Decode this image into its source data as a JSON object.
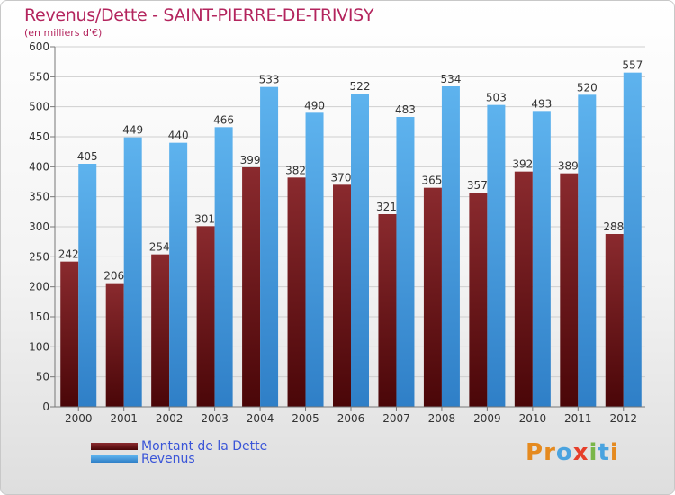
{
  "chart_data": {
    "type": "bar",
    "title": "Revenus/Dette - SAINT-PIERRE-DE-TRIVISY",
    "subtitle": "(en milliers d'€)",
    "categories": [
      "2000",
      "2001",
      "2002",
      "2003",
      "2004",
      "2005",
      "2006",
      "2007",
      "2008",
      "2009",
      "2010",
      "2011",
      "2012"
    ],
    "series": [
      {
        "name": "Montant de la Dette",
        "color": "#7a1a1e",
        "values": [
          242,
          206,
          254,
          301,
          399,
          382,
          370,
          321,
          365,
          357,
          392,
          389,
          288
        ]
      },
      {
        "name": "Revenus",
        "color": "#4fa3e3",
        "values": [
          405,
          449,
          440,
          466,
          533,
          490,
          522,
          483,
          534,
          503,
          493,
          520,
          557
        ]
      }
    ],
    "ylim": [
      0,
      600
    ],
    "yticks": [
      "0",
      "50",
      "100",
      "150",
      "200",
      "250",
      "300",
      "350",
      "400",
      "450",
      "500",
      "550",
      "600"
    ],
    "grid": true,
    "legend_position": "bottom-left"
  },
  "logo": {
    "text": "Proxiti",
    "letters": [
      "P",
      "r",
      "o",
      "x",
      "i",
      "t",
      "i"
    ],
    "colors": [
      "#e58a1f",
      "#e58a1f",
      "#4aa3df",
      "#e63e2a",
      "#7ab648",
      "#4aa3df",
      "#e58a1f"
    ]
  }
}
